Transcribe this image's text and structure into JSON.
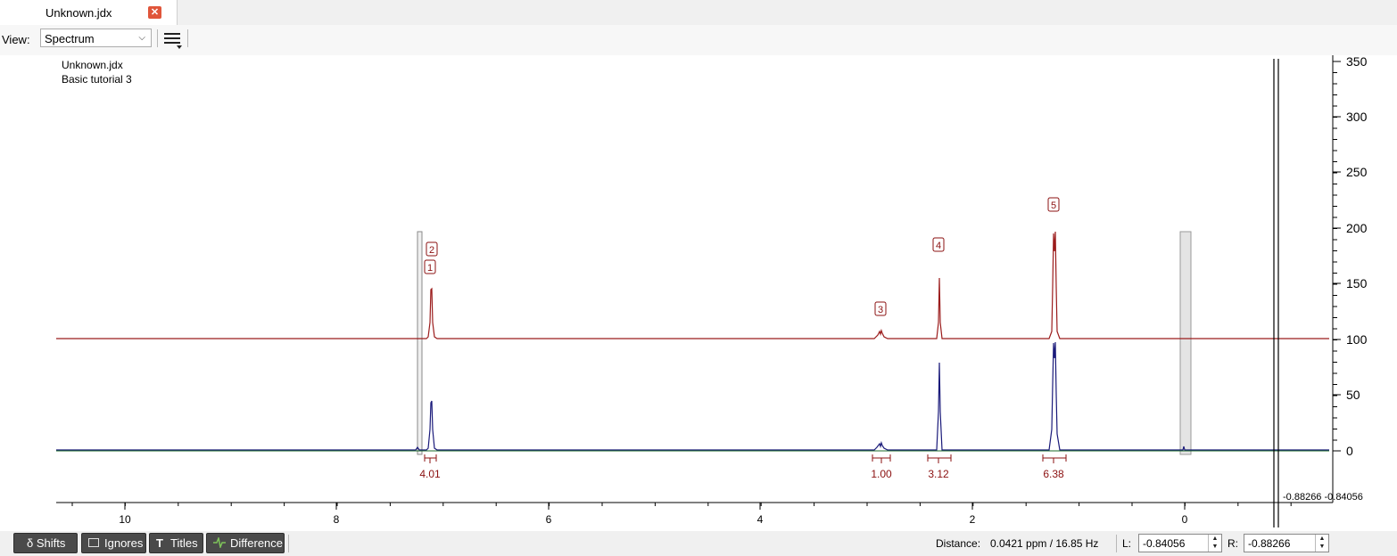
{
  "tab": {
    "title": "Unknown.jdx",
    "close_symbol": "✕"
  },
  "toolbar": {
    "view_label": "View:",
    "view_value": "Spectrum"
  },
  "plot": {
    "title_line1": "Unknown.jdx",
    "title_line2": "Basic tutorial 3",
    "x_ticks": [
      "10",
      "8",
      "6",
      "4",
      "2",
      "0"
    ],
    "y_ticks": [
      "350",
      "300",
      "250",
      "200",
      "150",
      "100",
      "50",
      "0"
    ],
    "overlapped_label": "-0.88266 -0.84056",
    "peak_labels": [
      "1",
      "2",
      "3",
      "4",
      "5"
    ],
    "integrals": [
      "4.01",
      "1.00",
      "3.12",
      "6.38"
    ],
    "colors": {
      "spectrum": "#9b1c1c",
      "original": "#1a1a7a",
      "baseline": "#1b6b2a",
      "label": "#8b1010"
    }
  },
  "buttons": {
    "shifts": "δ Shifts",
    "ignores": "Ignores",
    "titles": "Titles",
    "difference": "Difference"
  },
  "status": {
    "distance_label": "Distance:",
    "distance_value": "0.0421 ppm / 16.85 Hz",
    "left_label": "L:",
    "left_value": "-0.84056",
    "right_label": "R:",
    "right_value": "-0.88266"
  }
}
